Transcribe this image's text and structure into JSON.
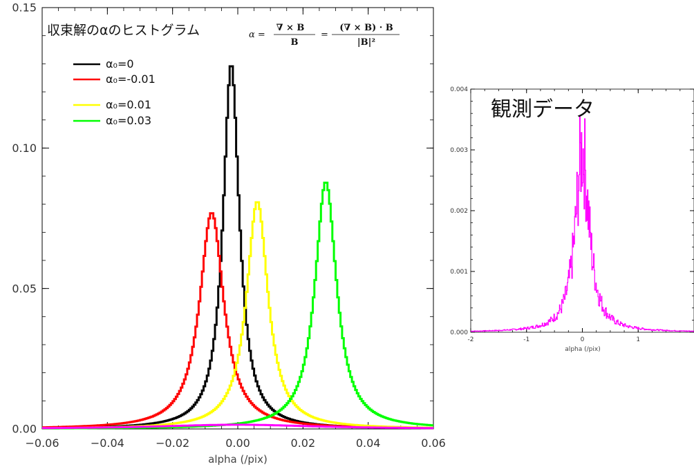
{
  "chart_data": [
    {
      "type": "line",
      "title": "収束解のαのヒストグラム",
      "formula": {
        "lhs": "α =",
        "frac1_num": "∇ × B",
        "frac1_den": "B",
        "eq": "=",
        "frac2_num": "(∇ × B) · B",
        "frac2_den": "|B|²"
      },
      "xlabel": "alpha (/pix)",
      "ylabel": "",
      "xlim": [
        -0.06,
        0.06
      ],
      "ylim": [
        0,
        0.15
      ],
      "x_ticks": [
        -0.06,
        -0.04,
        -0.02,
        0.0,
        0.02,
        0.04,
        0.06
      ],
      "x_tick_labels": [
        "−0.06",
        "−0.04",
        "−0.02",
        "0.00",
        "0.02",
        "0.04",
        "0.06"
      ],
      "y_ticks": [
        0.0,
        0.05,
        0.1,
        0.15
      ],
      "y_tick_labels": [
        "0.00",
        "0.05",
        "0.10",
        "0.15"
      ],
      "legend_position": "top-left",
      "series": [
        {
          "name": "α₀=0",
          "color": "#000000",
          "peak_x": -0.002,
          "peak_y": 0.13,
          "width": 0.003
        },
        {
          "name": "α₀=-0.01",
          "color": "#ff0000",
          "peak_x": -0.008,
          "peak_y": 0.077,
          "width": 0.0045
        },
        {
          "name": "α₀=0.01",
          "color": "#ffff00",
          "peak_x": 0.006,
          "peak_y": 0.081,
          "width": 0.004
        },
        {
          "name": "α₀=0.03",
          "color": "#00ff00",
          "peak_x": 0.027,
          "peak_y": 0.088,
          "width": 0.004
        },
        {
          "name": "",
          "color": "#ff00ff",
          "peak_x": 0.0,
          "peak_y": 0.0015,
          "width": 0.03
        }
      ]
    },
    {
      "type": "line",
      "title": "観測データ",
      "xlabel": "alpha (/pix)",
      "ylabel": "",
      "xlim": [
        -2,
        2
      ],
      "ylim": [
        0,
        0.004
      ],
      "x_ticks": [
        -2,
        -1,
        0,
        1
      ],
      "x_tick_labels": [
        "-2",
        "-1",
        "0",
        "1"
      ],
      "y_ticks": [
        0.0,
        0.001,
        0.002,
        0.003,
        0.004
      ],
      "y_tick_labels": [
        "0.000",
        "0.001",
        "0.002",
        "0.003",
        "0.004"
      ],
      "series": [
        {
          "name": "",
          "color": "#ff00ff",
          "peak_x": 0.0,
          "peak_y": 0.003,
          "width": 0.15
        }
      ]
    }
  ]
}
